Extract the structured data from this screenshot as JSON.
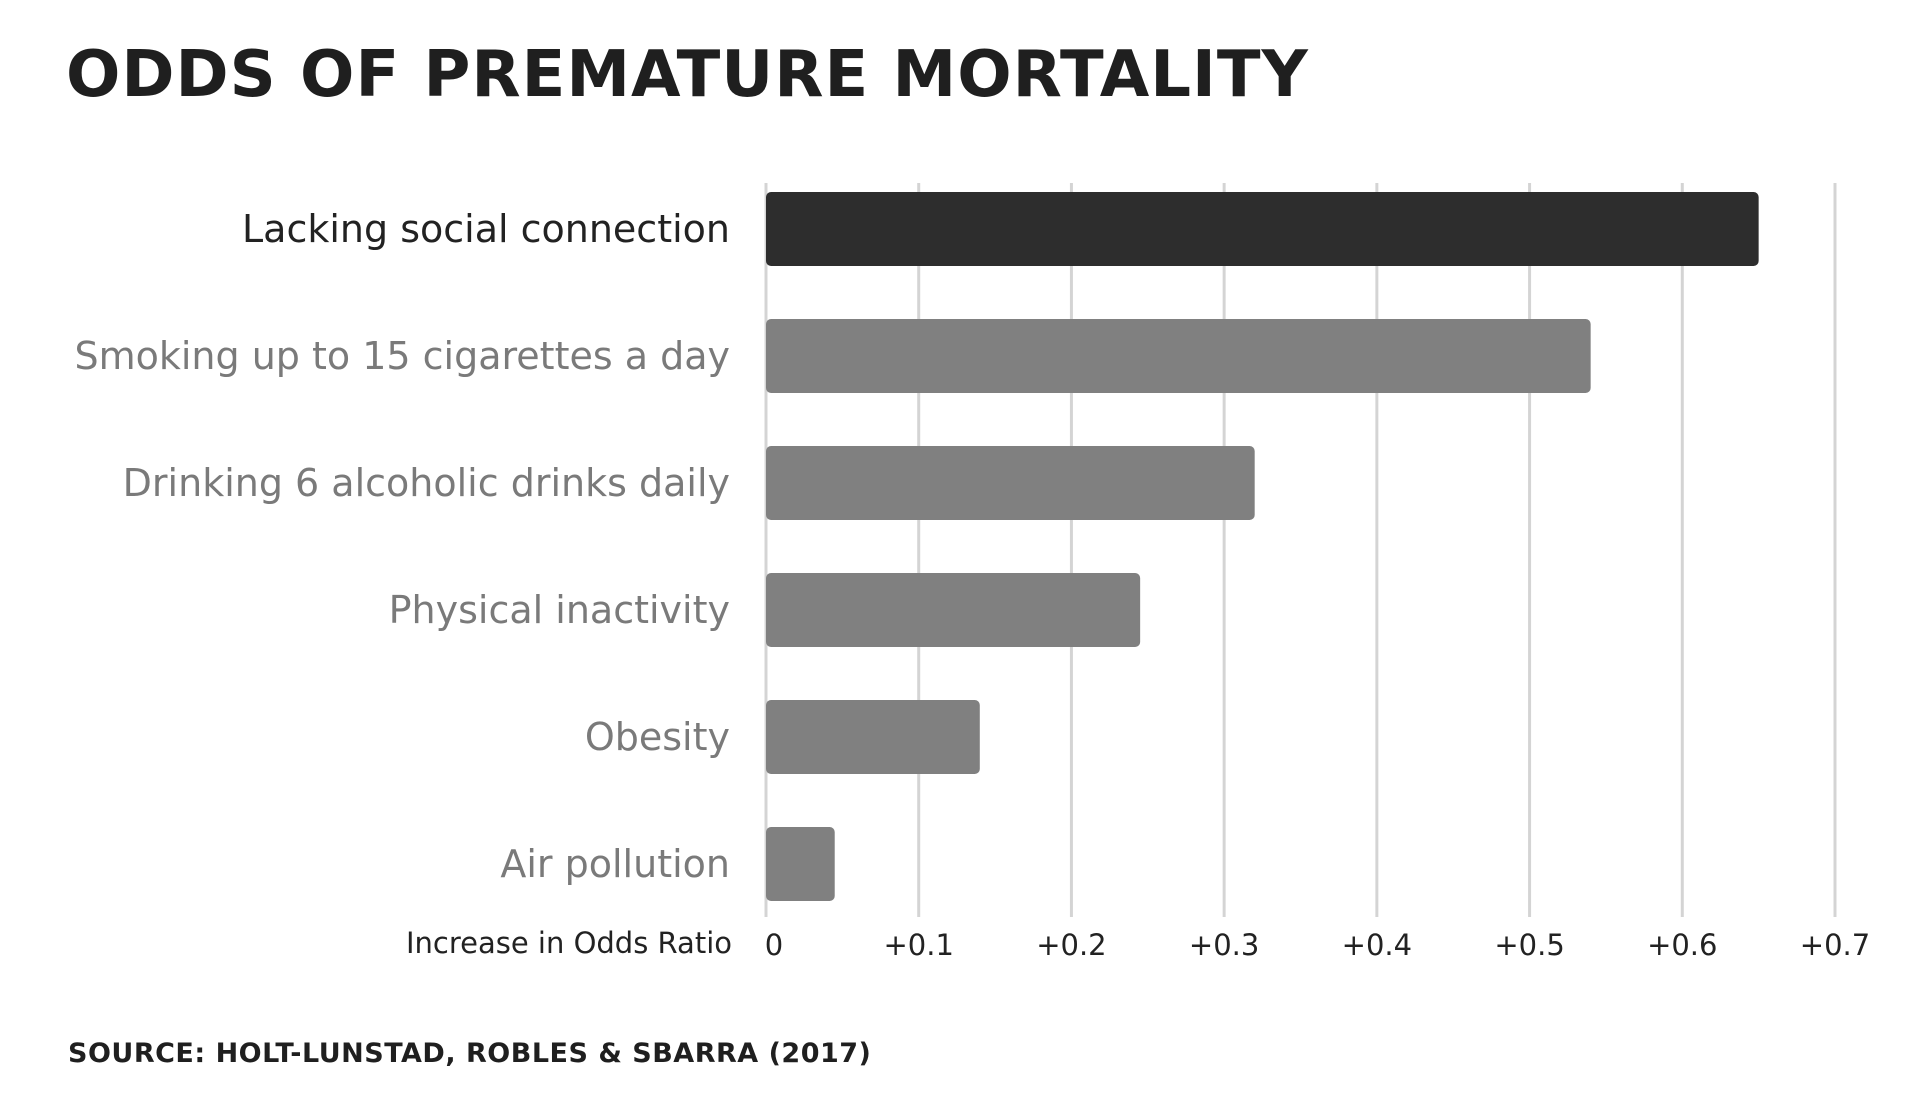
{
  "chart_data": {
    "type": "bar",
    "orientation": "horizontal",
    "title": "ODDS OF PREMATURE MORTALITY",
    "xlabel": "Increase in Odds Ratio",
    "ylabel": "",
    "categories": [
      "Lacking social connection",
      "Smoking up to 15 cigarettes a day",
      "Drinking 6 alcoholic drinks daily",
      "Physical inactivity",
      "Obesity",
      "Air pollution"
    ],
    "values": [
      0.65,
      0.54,
      0.32,
      0.245,
      0.14,
      0.045
    ],
    "highlight_index": 0,
    "xlim": [
      0,
      0.7
    ],
    "xticks": [
      0,
      0.1,
      0.2,
      0.3,
      0.4,
      0.5,
      0.6,
      0.7
    ],
    "xtick_labels": [
      "0",
      "+0.1",
      "+0.2",
      "+0.3",
      "+0.4",
      "+0.5",
      "+0.6",
      "+0.7"
    ],
    "grid": "vertical",
    "legend": "none",
    "colors": {
      "highlight_bar": "#2d2d2d",
      "bar": "#808080",
      "highlight_label": "#222222",
      "label": "#7a7a7a",
      "gridline": "#d4d4d4",
      "axis_text": "#222222"
    }
  },
  "source": "SOURCE: HOLT-LUNSTAD, ROBLES & SBARRA (2017)"
}
